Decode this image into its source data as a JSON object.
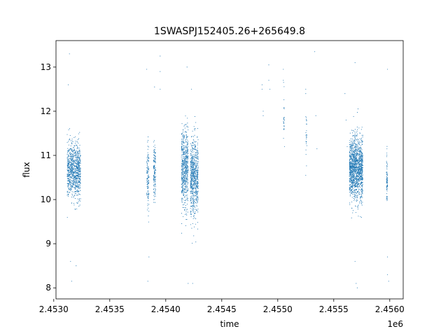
{
  "chart_data": {
    "type": "scatter",
    "title": "1SWASPJ152405.26+265649.8",
    "xlabel": "time",
    "ylabel": "flux",
    "x_offset_label": "1e6",
    "xlim": [
      2.45302,
      2.45612
    ],
    "ylim": [
      7.75,
      13.6
    ],
    "x_ticks": [
      2.453,
      2.4535,
      2.454,
      2.4545,
      2.455,
      2.4555,
      2.456
    ],
    "x_tick_labels": [
      "2.4530",
      "2.4535",
      "2.4540",
      "2.4545",
      "2.4550",
      "2.4555",
      "2.4560"
    ],
    "y_ticks": [
      8,
      9,
      10,
      11,
      12,
      13
    ],
    "y_tick_labels": [
      "8",
      "9",
      "10",
      "11",
      "12",
      "13"
    ],
    "grid": false,
    "marker_color": "#1f77b4",
    "clusters": [
      {
        "x_start": 2.45312,
        "x_end": 2.45324,
        "y_center": 10.65,
        "y_spread": 0.55,
        "n": 900
      },
      {
        "x_start": 2.45383,
        "x_end": 2.45385,
        "y_center": 10.5,
        "y_spread": 0.7,
        "n": 120
      },
      {
        "x_start": 2.45389,
        "x_end": 2.45391,
        "y_center": 10.6,
        "y_spread": 0.6,
        "n": 140
      },
      {
        "x_start": 2.45414,
        "x_end": 2.4542,
        "y_center": 10.7,
        "y_spread": 0.8,
        "n": 600
      },
      {
        "x_start": 2.45422,
        "x_end": 2.45429,
        "y_center": 10.5,
        "y_spread": 0.8,
        "n": 700
      },
      {
        "x_start": 2.45505,
        "x_end": 2.45506,
        "y_center": 11.9,
        "y_spread": 0.5,
        "n": 25
      },
      {
        "x_start": 2.45525,
        "x_end": 2.45526,
        "y_center": 11.4,
        "y_spread": 0.5,
        "n": 25
      },
      {
        "x_start": 2.45564,
        "x_end": 2.45576,
        "y_center": 10.7,
        "y_spread": 0.65,
        "n": 1400
      },
      {
        "x_start": 2.45597,
        "x_end": 2.45598,
        "y_center": 10.4,
        "y_spread": 0.6,
        "n": 80
      }
    ],
    "outliers": [
      [
        2.45314,
        13.3
      ],
      [
        2.45315,
        8.6
      ],
      [
        2.45316,
        8.15
      ],
      [
        2.4532,
        8.5
      ],
      [
        2.45313,
        12.6
      ],
      [
        2.45383,
        12.95
      ],
      [
        2.45384,
        8.15
      ],
      [
        2.45385,
        8.7
      ],
      [
        2.4539,
        12.55
      ],
      [
        2.45395,
        13.25
      ],
      [
        2.45395,
        12.9
      ],
      [
        2.45395,
        12.5
      ],
      [
        2.4542,
        8.1
      ],
      [
        2.45424,
        8.1
      ],
      [
        2.45419,
        13.0
      ],
      [
        2.45423,
        12.5
      ],
      [
        2.45486,
        12.6
      ],
      [
        2.45486,
        12.5
      ],
      [
        2.45487,
        12.0
      ],
      [
        2.45487,
        11.9
      ],
      [
        2.45492,
        13.05
      ],
      [
        2.45492,
        12.7
      ],
      [
        2.45493,
        12.5
      ],
      [
        2.45505,
        12.95
      ],
      [
        2.45505,
        12.7
      ],
      [
        2.45506,
        11.2
      ],
      [
        2.45525,
        12.5
      ],
      [
        2.45525,
        12.4
      ],
      [
        2.45525,
        10.55
      ],
      [
        2.45533,
        13.35
      ],
      [
        2.45534,
        11.9
      ],
      [
        2.45535,
        11.15
      ],
      [
        2.4556,
        12.4
      ],
      [
        2.45561,
        11.8
      ],
      [
        2.45562,
        11.2
      ],
      [
        2.45569,
        13.1
      ],
      [
        2.4557,
        8.1
      ],
      [
        2.45571,
        8.0
      ],
      [
        2.45569,
        8.6
      ],
      [
        2.45598,
        12.95
      ],
      [
        2.45598,
        8.7
      ],
      [
        2.45598,
        8.3
      ],
      [
        2.45599,
        8.15
      ]
    ]
  }
}
